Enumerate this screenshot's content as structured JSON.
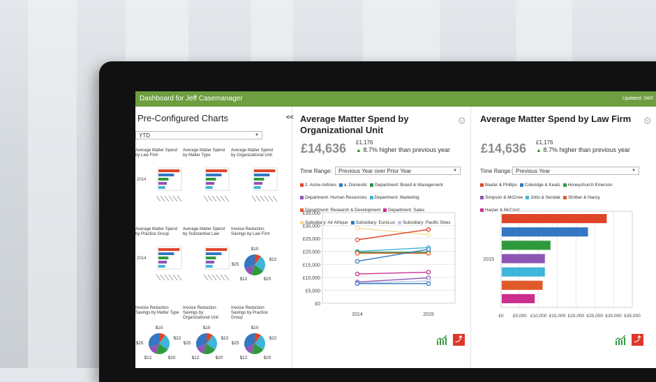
{
  "header": {
    "title": "Dashboard for Jeff Casemanager",
    "updated": "Updated: 04/0"
  },
  "left_panel": {
    "heading": "Pre-Configured Charts",
    "collapse_label": "<<",
    "period_select": "YTD",
    "charts": [
      {
        "title": "Average Matter Spend by Law Firm",
        "type": "bar",
        "ylabel": "2014"
      },
      {
        "title": "Average Matter Spend by Matter Type",
        "type": "bar",
        "ylabel": ""
      },
      {
        "title": "Average Matter Spend by Organizational Unit",
        "type": "bar",
        "ylabel": ""
      },
      {
        "title": "Average Matter Spend by Practice Group",
        "type": "bar",
        "ylabel": "2014"
      },
      {
        "title": "Average Matter Spend by Substantive Law",
        "type": "bar",
        "ylabel": ""
      },
      {
        "title": "Invoice Reduction Savings by Law Firm",
        "type": "pie",
        "labels": [
          "$10",
          "$22",
          "$20",
          "$12",
          "$25"
        ]
      },
      {
        "title": "Invoice Reduction Savings by Matter Type",
        "type": "pie",
        "labels": [
          "$10",
          "$22",
          "$20",
          "$12",
          "$25"
        ]
      },
      {
        "title": "Invoice Reduction Savings by Organizational Unit",
        "type": "pie",
        "labels": [
          "$10",
          "$22",
          "$20",
          "$12",
          "$25"
        ]
      },
      {
        "title": "Invoice Reduction Savings by Practice Group",
        "type": "pie",
        "labels": [
          "$10",
          "$22",
          "$20",
          "$12",
          "$25"
        ]
      }
    ]
  },
  "org_panel": {
    "title": "Average Matter Spend by Organizational Unit",
    "amount": "£14,636",
    "prev_amount": "£1,176",
    "change_text": "8.7% higher than previous year",
    "time_range_label": "Time Range:",
    "time_range_value": "Previous Year over Prior Year",
    "legend": [
      {
        "name": "2. Acme Airlines",
        "color": "#e0452a"
      },
      {
        "name": "a. Domestic",
        "color": "#3477c2"
      },
      {
        "name": "Department: Board & Management",
        "color": "#2f9a3c"
      },
      {
        "name": "Department: Human Resources",
        "color": "#8e55b5"
      },
      {
        "name": "Department: Marketing",
        "color": "#3fb5d8"
      },
      {
        "name": "Department: Research & Development",
        "color": "#e05a2a"
      },
      {
        "name": "Department: Sales",
        "color": "#cc2f8e"
      },
      {
        "name": "Subsidiary: Air Afrique",
        "color": "#f4dc98"
      },
      {
        "name": "Subsidiary: EuroLux",
        "color": "#2a78c4"
      },
      {
        "name": "Subsidiary: Pacific Skies",
        "color": "#b9c9e6"
      }
    ]
  },
  "firm_panel": {
    "title": "Average Matter Spend by Law Firm",
    "amount": "£14,636",
    "prev_amount": "£1,176",
    "change_text": "8.7% higher than previous year",
    "time_range_label": "Time Range:",
    "time_range_value": "Previous Year",
    "legend": [
      {
        "name": "Baxter & Phillips",
        "color": "#e0452a"
      },
      {
        "name": "Coleridge & Keats",
        "color": "#3477c2"
      },
      {
        "name": "Honeychurch Emerson",
        "color": "#2f9a3c"
      },
      {
        "name": "Simpson & McCree",
        "color": "#8e55b5"
      },
      {
        "name": "Jotto & Sendak",
        "color": "#3fb5d8"
      },
      {
        "name": "Shriber & Hancy",
        "color": "#e05a2a"
      },
      {
        "name": "Harper & McCord",
        "color": "#cc2f8e"
      }
    ]
  },
  "chart_data": [
    {
      "type": "line",
      "title": "Average Matter Spend by Organizational Unit",
      "x": [
        "2014",
        "2015"
      ],
      "y_ticks": [
        "£35,000",
        "£30,000",
        "£25,000",
        "£20,000",
        "£15,000",
        "£10,000",
        "£5,000",
        "£0"
      ],
      "ylim": [
        0,
        35000
      ],
      "series": [
        {
          "name": "Subsidiary: Air Afrique",
          "color": "#f4dc98",
          "values": [
            29000,
            26500
          ]
        },
        {
          "name": "2. Acme Airlines",
          "color": "#e0452a",
          "values": [
            24500,
            28500
          ]
        },
        {
          "name": "Department: Marketing",
          "color": "#3fb5d8",
          "values": [
            20000,
            21500
          ]
        },
        {
          "name": "Department: Board & Management",
          "color": "#2f9a3c",
          "values": [
            19700,
            19700
          ]
        },
        {
          "name": "Department: Research & Development",
          "color": "#e05a2a",
          "values": [
            19300,
            19300
          ]
        },
        {
          "name": "a. Domestic",
          "color": "#3477c2",
          "values": [
            16200,
            20800
          ]
        },
        {
          "name": "Department: Sales",
          "color": "#cc2f8e",
          "values": [
            11300,
            12000
          ]
        },
        {
          "name": "Department: Human Resources",
          "color": "#8e55b5",
          "values": [
            8200,
            9800
          ]
        },
        {
          "name": "Subsidiary: Pacific Skies",
          "color": "#b9c9e6",
          "values": [
            7800,
            8600
          ]
        },
        {
          "name": "Subsidiary: EuroLux",
          "color": "#2a78c4",
          "values": [
            7600,
            7600
          ]
        }
      ]
    },
    {
      "type": "bar",
      "orientation": "horizontal",
      "title": "Average Matter Spend by Law Firm",
      "category_label": "2015",
      "x_ticks": [
        "£0",
        "£5,000",
        "£10,000",
        "£15,000",
        "£20,000",
        "£25,000",
        "£30,000",
        "£35,000"
      ],
      "xlim": [
        0,
        35000
      ],
      "series": [
        {
          "name": "Baxter & Phillips",
          "color": "#e0452a",
          "value": 28000
        },
        {
          "name": "Coleridge & Keats",
          "color": "#3477c2",
          "value": 23000
        },
        {
          "name": "Honeychurch Emerson",
          "color": "#2f9a3c",
          "value": 13000
        },
        {
          "name": "Simpson & McCree",
          "color": "#8e55b5",
          "value": 11500
        },
        {
          "name": "Jotto & Sendak",
          "color": "#3fb5d8",
          "value": 11500
        },
        {
          "name": "Shriber & Hancy",
          "color": "#e05a2a",
          "value": 10900
        },
        {
          "name": "Harper & McCord",
          "color": "#cc2f8e",
          "value": 8800
        }
      ]
    }
  ]
}
